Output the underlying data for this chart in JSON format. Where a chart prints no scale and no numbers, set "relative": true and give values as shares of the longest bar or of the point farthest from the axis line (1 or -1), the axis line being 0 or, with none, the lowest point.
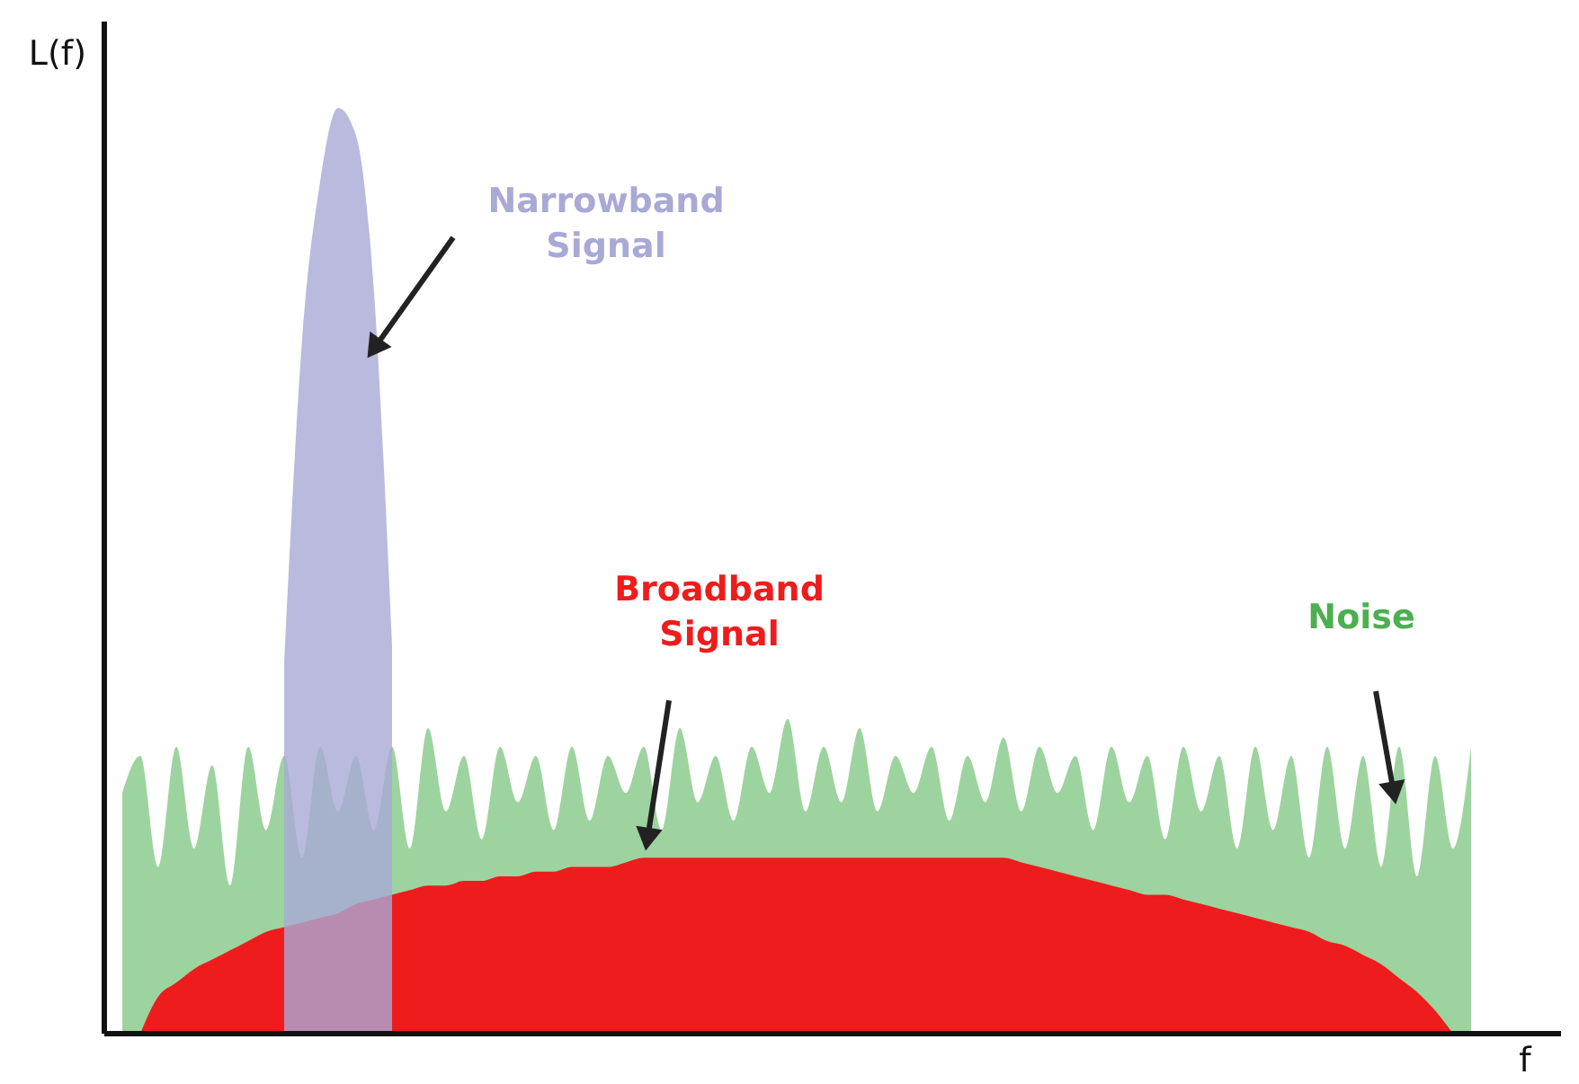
{
  "chart_data": {
    "type": "area",
    "relative": true,
    "xlabel": "f",
    "ylabel": "L(f)",
    "grid": false,
    "tick_labels": false,
    "categories": [
      null,
      null,
      null,
      null,
      null,
      null,
      null,
      null,
      null,
      null,
      null,
      null,
      null,
      null,
      null,
      null,
      null,
      null,
      null,
      null,
      null,
      null,
      null,
      null,
      null,
      null,
      null,
      null,
      null,
      null,
      null,
      null,
      null,
      null,
      null,
      null,
      null,
      null,
      null,
      null,
      null,
      null,
      null,
      null,
      null,
      null,
      null,
      null,
      null,
      null,
      null,
      null,
      null,
      null,
      null,
      null,
      null,
      null,
      null,
      null,
      null,
      null,
      null,
      null,
      null,
      null,
      null,
      null,
      null,
      null,
      null,
      null,
      null,
      null,
      null,
      null,
      null,
      null,
      null,
      null,
      null
    ],
    "series": [
      {
        "name": "Noise",
        "color": "#4caf50",
        "values": [
          null,
          0.26,
          0.3,
          0.18,
          0.31,
          0.2,
          0.29,
          0.16,
          0.31,
          0.22,
          0.3,
          0.19,
          0.31,
          0.24,
          0.3,
          0.22,
          0.31,
          0.2,
          0.33,
          0.24,
          0.3,
          0.21,
          0.31,
          0.25,
          0.3,
          0.22,
          0.31,
          0.23,
          0.3,
          0.26,
          0.31,
          0.22,
          0.33,
          0.25,
          0.3,
          0.23,
          0.31,
          0.26,
          0.34,
          0.24,
          0.31,
          0.25,
          0.33,
          0.24,
          0.3,
          0.26,
          0.31,
          0.23,
          0.3,
          0.25,
          0.32,
          0.24,
          0.31,
          0.26,
          0.3,
          0.22,
          0.31,
          0.25,
          0.3,
          0.21,
          0.31,
          0.24,
          0.3,
          0.2,
          0.31,
          0.22,
          0.3,
          0.19,
          0.31,
          0.2,
          0.3,
          0.18,
          0.31,
          0.17,
          0.3,
          0.2,
          0.31,
          null,
          null,
          null,
          null
        ]
      },
      {
        "name": "Broadband Signal",
        "color": "#ee1c1c",
        "values": [
          null,
          null,
          0,
          0.04,
          0.055,
          0.07,
          0.08,
          0.09,
          0.1,
          0.11,
          0.115,
          0.12,
          0.125,
          0.13,
          0.14,
          0.145,
          0.15,
          0.155,
          0.16,
          0.16,
          0.165,
          0.165,
          0.17,
          0.17,
          0.175,
          0.175,
          0.18,
          0.18,
          0.18,
          0.185,
          0.19,
          0.19,
          0.19,
          0.19,
          0.19,
          0.19,
          0.19,
          0.19,
          0.19,
          0.19,
          0.19,
          0.19,
          0.19,
          0.19,
          0.19,
          0.19,
          0.19,
          0.19,
          0.19,
          0.19,
          0.19,
          0.185,
          0.18,
          0.175,
          0.17,
          0.165,
          0.16,
          0.155,
          0.15,
          0.15,
          0.145,
          0.14,
          0.135,
          0.13,
          0.125,
          0.12,
          0.115,
          0.11,
          0.1,
          0.095,
          0.085,
          0.075,
          0.06,
          0.045,
          0.025,
          0,
          null,
          null,
          null,
          null,
          null
        ]
      },
      {
        "name": "Narrowband Signal",
        "color": "#a9a9d6",
        "values": [
          null,
          null,
          null,
          null,
          null,
          null,
          null,
          null,
          null,
          null,
          0.4,
          0.75,
          0.92,
          1,
          0.97,
          0.8,
          0.42,
          null,
          null,
          null,
          null,
          null,
          null,
          null,
          null,
          null,
          null,
          null,
          null,
          null,
          null,
          null,
          null,
          null,
          null,
          null,
          null,
          null,
          null,
          null,
          null,
          null,
          null,
          null,
          null,
          null,
          null,
          null,
          null,
          null,
          null,
          null,
          null,
          null,
          null,
          null,
          null,
          null,
          null,
          null,
          null,
          null,
          null,
          null,
          null,
          null,
          null,
          null,
          null,
          null,
          null,
          null,
          null,
          null,
          null,
          null,
          null,
          null,
          null,
          null,
          null
        ]
      }
    ]
  }
}
